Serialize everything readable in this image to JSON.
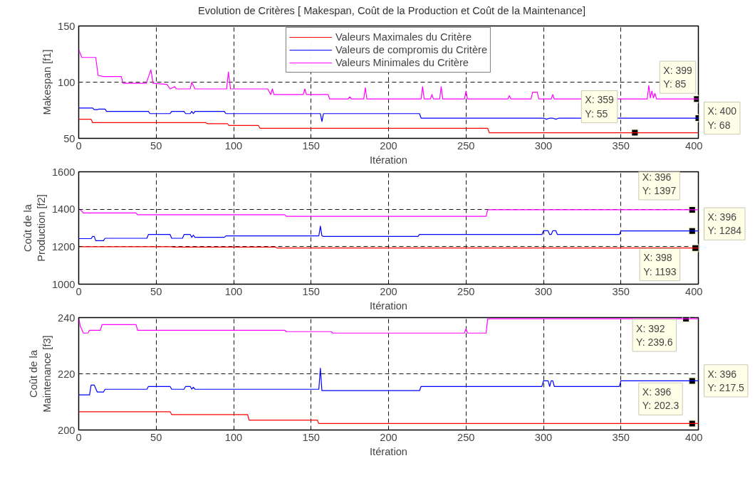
{
  "chart_data": [
    {
      "type": "line",
      "title": "Evolution de Critères [ Makespan, Coût de la Production et Coût de la Maintenance]",
      "xlabel": "Itération",
      "ylabel": "Makespan [f1]",
      "xlim": [
        0,
        400
      ],
      "xticks": [
        0,
        50,
        100,
        150,
        200,
        250,
        300,
        350,
        400
      ],
      "ylim": [
        50,
        150
      ],
      "yticks": [
        50,
        100,
        150
      ],
      "grid": true,
      "legend": "top",
      "series": [
        {
          "name": "Valeurs Maximales du Critère",
          "color": "#ff0000",
          "x": [
            0,
            8,
            9,
            82,
            83,
            96,
            97,
            116,
            117,
            264,
            265,
            400
          ],
          "values": [
            67,
            67,
            64,
            64,
            63,
            63,
            61.5,
            61.5,
            59,
            59,
            55,
            55
          ]
        },
        {
          "name": "Valeurs de compromis du Critère",
          "color": "#0000ff",
          "x": [
            0,
            9,
            10,
            12,
            13,
            17,
            18,
            45,
            46,
            59,
            60,
            68,
            69,
            72,
            73,
            74,
            75,
            94,
            95,
            156,
            157,
            158,
            220,
            221,
            300,
            302,
            304,
            306,
            308,
            310,
            400
          ],
          "values": [
            77,
            77,
            75.5,
            75.5,
            76,
            76,
            74,
            74,
            72,
            72,
            74,
            74,
            72,
            72,
            74,
            72,
            74,
            74,
            72,
            72,
            65,
            72,
            72,
            68,
            68,
            67,
            68,
            68,
            67,
            68,
            68
          ]
        },
        {
          "name": "Valeurs Minimales du Critère",
          "color": "#ff00ff",
          "x": [
            0,
            2,
            11,
            12.5,
            16,
            27.5,
            28.6,
            43.6,
            46.6,
            48,
            57,
            59,
            62,
            63,
            72,
            73,
            75,
            95.5,
            96.6,
            98,
            122,
            124,
            125,
            126,
            145,
            146,
            147,
            161,
            162,
            174,
            175,
            176,
            184,
            185,
            186,
            221,
            222,
            223,
            227,
            228,
            229,
            233,
            234,
            235,
            249,
            250,
            251,
            277,
            278,
            279,
            292,
            293,
            296,
            297,
            305,
            306,
            307,
            367,
            368,
            369,
            370,
            371,
            372,
            373,
            400
          ],
          "values": [
            129,
            122,
            122,
            106,
            105,
            105,
            99,
            99,
            111,
            99,
            98,
            94,
            96,
            94,
            94,
            100,
            94,
            94,
            109,
            94,
            94,
            89,
            94,
            89,
            89,
            94,
            89,
            89,
            85,
            85,
            87,
            85,
            85,
            95,
            85,
            85,
            96,
            85,
            85,
            89,
            85,
            85,
            96,
            85,
            85,
            92,
            85,
            85,
            88,
            85,
            85,
            91,
            91,
            85,
            85,
            89,
            85,
            85,
            97,
            86,
            92,
            86,
            90,
            85,
            85
          ]
        }
      ],
      "annotations": [
        {
          "text": "X: 399\nY: 85",
          "x": 399,
          "y": 85
        },
        {
          "text": "X: 400\nY: 68",
          "x": 400,
          "y": 68
        },
        {
          "text": "X: 359\nY: 55",
          "x": 359,
          "y": 55
        }
      ]
    },
    {
      "type": "line",
      "xlabel": "Itération",
      "ylabel": "Coût de la\nProduction [f2]",
      "xlim": [
        0,
        400
      ],
      "xticks": [
        0,
        50,
        100,
        150,
        200,
        250,
        300,
        350,
        400
      ],
      "ylim": [
        1000,
        1600
      ],
      "yticks": [
        1000,
        1200,
        1400,
        1600
      ],
      "grid": true,
      "series": [
        {
          "color": "#ff0000",
          "x": [
            0,
            60,
            61,
            127,
            128,
            400
          ],
          "values": [
            1200,
            1200,
            1198,
            1198,
            1193,
            1193
          ]
        },
        {
          "color": "#0000ff",
          "x": [
            0,
            8,
            9,
            10,
            11,
            16,
            17,
            44,
            45,
            59,
            60,
            67,
            68,
            72,
            73,
            74,
            75,
            94,
            95,
            155,
            156,
            157,
            158,
            219,
            220,
            299,
            300,
            303,
            304,
            305,
            306,
            308,
            309,
            349,
            350,
            400
          ],
          "values": [
            1243,
            1243,
            1255,
            1255,
            1232,
            1232,
            1245,
            1245,
            1265,
            1265,
            1245,
            1245,
            1265,
            1265,
            1250,
            1262,
            1250,
            1250,
            1258,
            1258,
            1310,
            1258,
            1255,
            1255,
            1265,
            1265,
            1285,
            1285,
            1265,
            1265,
            1285,
            1285,
            1265,
            1265,
            1284,
            1284
          ]
        },
        {
          "color": "#ff00ff",
          "x": [
            0,
            1,
            3,
            37,
            38,
            133,
            134,
            263,
            264,
            400
          ],
          "values": [
            1400,
            1398,
            1380,
            1380,
            1371,
            1371,
            1362,
            1362,
            1397,
            1397
          ]
        }
      ],
      "annotations": [
        {
          "text": "X: 396\nY: 1397",
          "x": 396,
          "y": 1397
        },
        {
          "text": "X: 396\nY: 1284",
          "x": 396,
          "y": 1284
        },
        {
          "text": "X: 398\nY: 1193",
          "x": 398,
          "y": 1193
        }
      ]
    },
    {
      "type": "line",
      "xlabel": "Itération",
      "ylabel": "Coût de la\nMaintenance [f3]",
      "xlim": [
        0,
        400
      ],
      "xticks": [
        0,
        50,
        100,
        150,
        200,
        250,
        300,
        350,
        400
      ],
      "ylim": [
        200,
        240
      ],
      "yticks": [
        200,
        220,
        240
      ],
      "grid": true,
      "series": [
        {
          "color": "#ff0000",
          "x": [
            0,
            59,
            60,
            109,
            110,
            154,
            155,
            400
          ],
          "values": [
            206.5,
            206.5,
            205.5,
            205.5,
            203.5,
            203.5,
            202.3,
            202.3
          ]
        },
        {
          "color": "#0000ff",
          "x": [
            0,
            7,
            8,
            10,
            12,
            16,
            17,
            44,
            45,
            59,
            60,
            68,
            69,
            72,
            73,
            74,
            75,
            155,
            156,
            157,
            158,
            220,
            221,
            299,
            300,
            303,
            304,
            305,
            306,
            307,
            308,
            349,
            350,
            400
          ],
          "values": [
            212.5,
            212.5,
            216,
            216,
            213.5,
            213.5,
            214.5,
            214.5,
            215.5,
            215.5,
            214.5,
            214.5,
            215.5,
            215.5,
            214.5,
            215.2,
            214.5,
            214.5,
            222,
            214,
            214,
            214,
            215.5,
            215.5,
            217.5,
            217.5,
            215.5,
            217.5,
            217.5,
            215.5,
            215.5,
            215.5,
            217.5,
            217.5
          ]
        },
        {
          "color": "#ff00ff",
          "x": [
            0,
            1,
            3,
            6,
            7,
            14,
            15,
            37,
            38,
            133,
            134,
            163,
            164,
            249,
            250,
            251,
            263,
            264,
            400
          ],
          "values": [
            240,
            237,
            234.5,
            234.5,
            235.5,
            235.5,
            237.5,
            237.5,
            235.5,
            235.5,
            235,
            235,
            234.5,
            234.5,
            236,
            234.5,
            234.5,
            239.6,
            239.6
          ]
        }
      ],
      "annotations": [
        {
          "text": "X: 392\nY: 239.6",
          "x": 392,
          "y": 239.6
        },
        {
          "text": "X: 396\nY: 217.5",
          "x": 396,
          "y": 217.5
        },
        {
          "text": "X: 396\nY: 202.3",
          "x": 396,
          "y": 202.3
        }
      ]
    }
  ]
}
